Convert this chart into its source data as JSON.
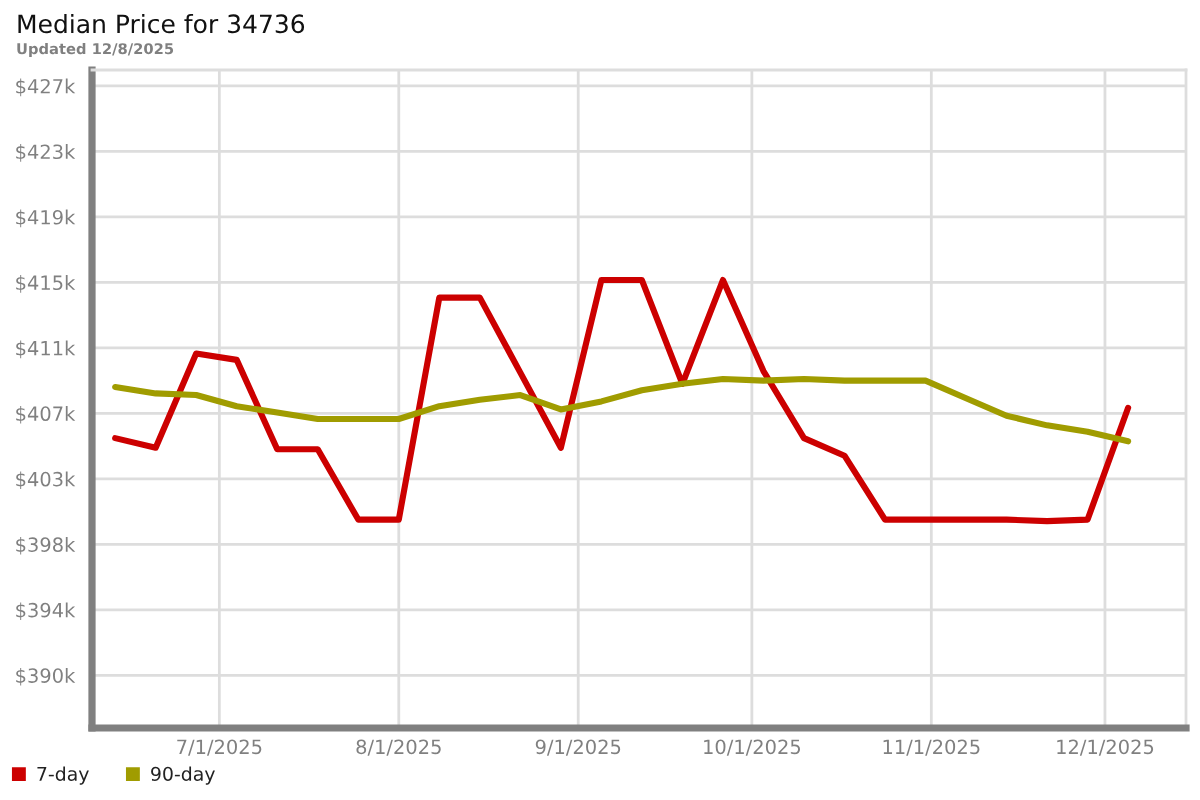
{
  "chart_data": {
    "type": "line",
    "title": "Median Price for 34736",
    "subtitle": "Updated 12/8/2025",
    "x": [
      "2025-06-13",
      "2025-06-20",
      "2025-06-27",
      "2025-07-04",
      "2025-07-11",
      "2025-07-18",
      "2025-07-25",
      "2025-08-01",
      "2025-08-08",
      "2025-08-15",
      "2025-08-22",
      "2025-08-29",
      "2025-09-05",
      "2025-09-12",
      "2025-09-19",
      "2025-09-26",
      "2025-10-03",
      "2025-10-10",
      "2025-10-17",
      "2025-10-24",
      "2025-10-31",
      "2025-11-07",
      "2025-11-14",
      "2025-11-21",
      "2025-11-28",
      "2025-12-05"
    ],
    "series": [
      {
        "name": "7-day",
        "color": "#cc0000",
        "values": [
          405.1,
          404.5,
          410.4,
          410.0,
          404.4,
          404.4,
          400.0,
          400.0,
          413.9,
          413.9,
          409.2,
          404.5,
          415.0,
          415.0,
          408.5,
          415.0,
          409.3,
          405.1,
          404.0,
          400.0,
          400.0,
          400.0,
          400.0,
          399.9,
          400.0,
          407.0
        ]
      },
      {
        "name": "90-day",
        "color": "#a09c00",
        "values": [
          408.3,
          407.9,
          407.8,
          407.1,
          406.7,
          406.3,
          406.3,
          406.3,
          407.1,
          407.5,
          407.8,
          406.9,
          407.4,
          408.1,
          408.5,
          408.8,
          408.7,
          408.8,
          408.7,
          408.7,
          408.7,
          407.6,
          406.5,
          405.9,
          405.5,
          404.9
        ]
      }
    ],
    "xlim": [
      "2025-06-09",
      "2025-12-15"
    ],
    "xticks": [
      {
        "value": "2025-07-01",
        "label": "7/1/2025"
      },
      {
        "value": "2025-08-01",
        "label": "8/1/2025"
      },
      {
        "value": "2025-09-01",
        "label": "9/1/2025"
      },
      {
        "value": "2025-10-01",
        "label": "10/1/2025"
      },
      {
        "value": "2025-11-01",
        "label": "11/1/2025"
      },
      {
        "value": "2025-12-01",
        "label": "12/1/2025"
      }
    ],
    "ylim": [
      386.95,
      428.15
    ],
    "yticks": [
      {
        "value": 390.25,
        "label": "$390k"
      },
      {
        "value": 394.35,
        "label": "$394k"
      },
      {
        "value": 398.45,
        "label": "$398k"
      },
      {
        "value": 402.55,
        "label": "$403k"
      },
      {
        "value": 406.65,
        "label": "$407k"
      },
      {
        "value": 410.75,
        "label": "$411k"
      },
      {
        "value": 414.85,
        "label": "$415k"
      },
      {
        "value": 418.95,
        "label": "$419k"
      },
      {
        "value": 423.05,
        "label": "$423k"
      },
      {
        "value": 427.15,
        "label": "$427k"
      }
    ],
    "grid": true,
    "legend": "bottom left",
    "line_style": "solid"
  }
}
